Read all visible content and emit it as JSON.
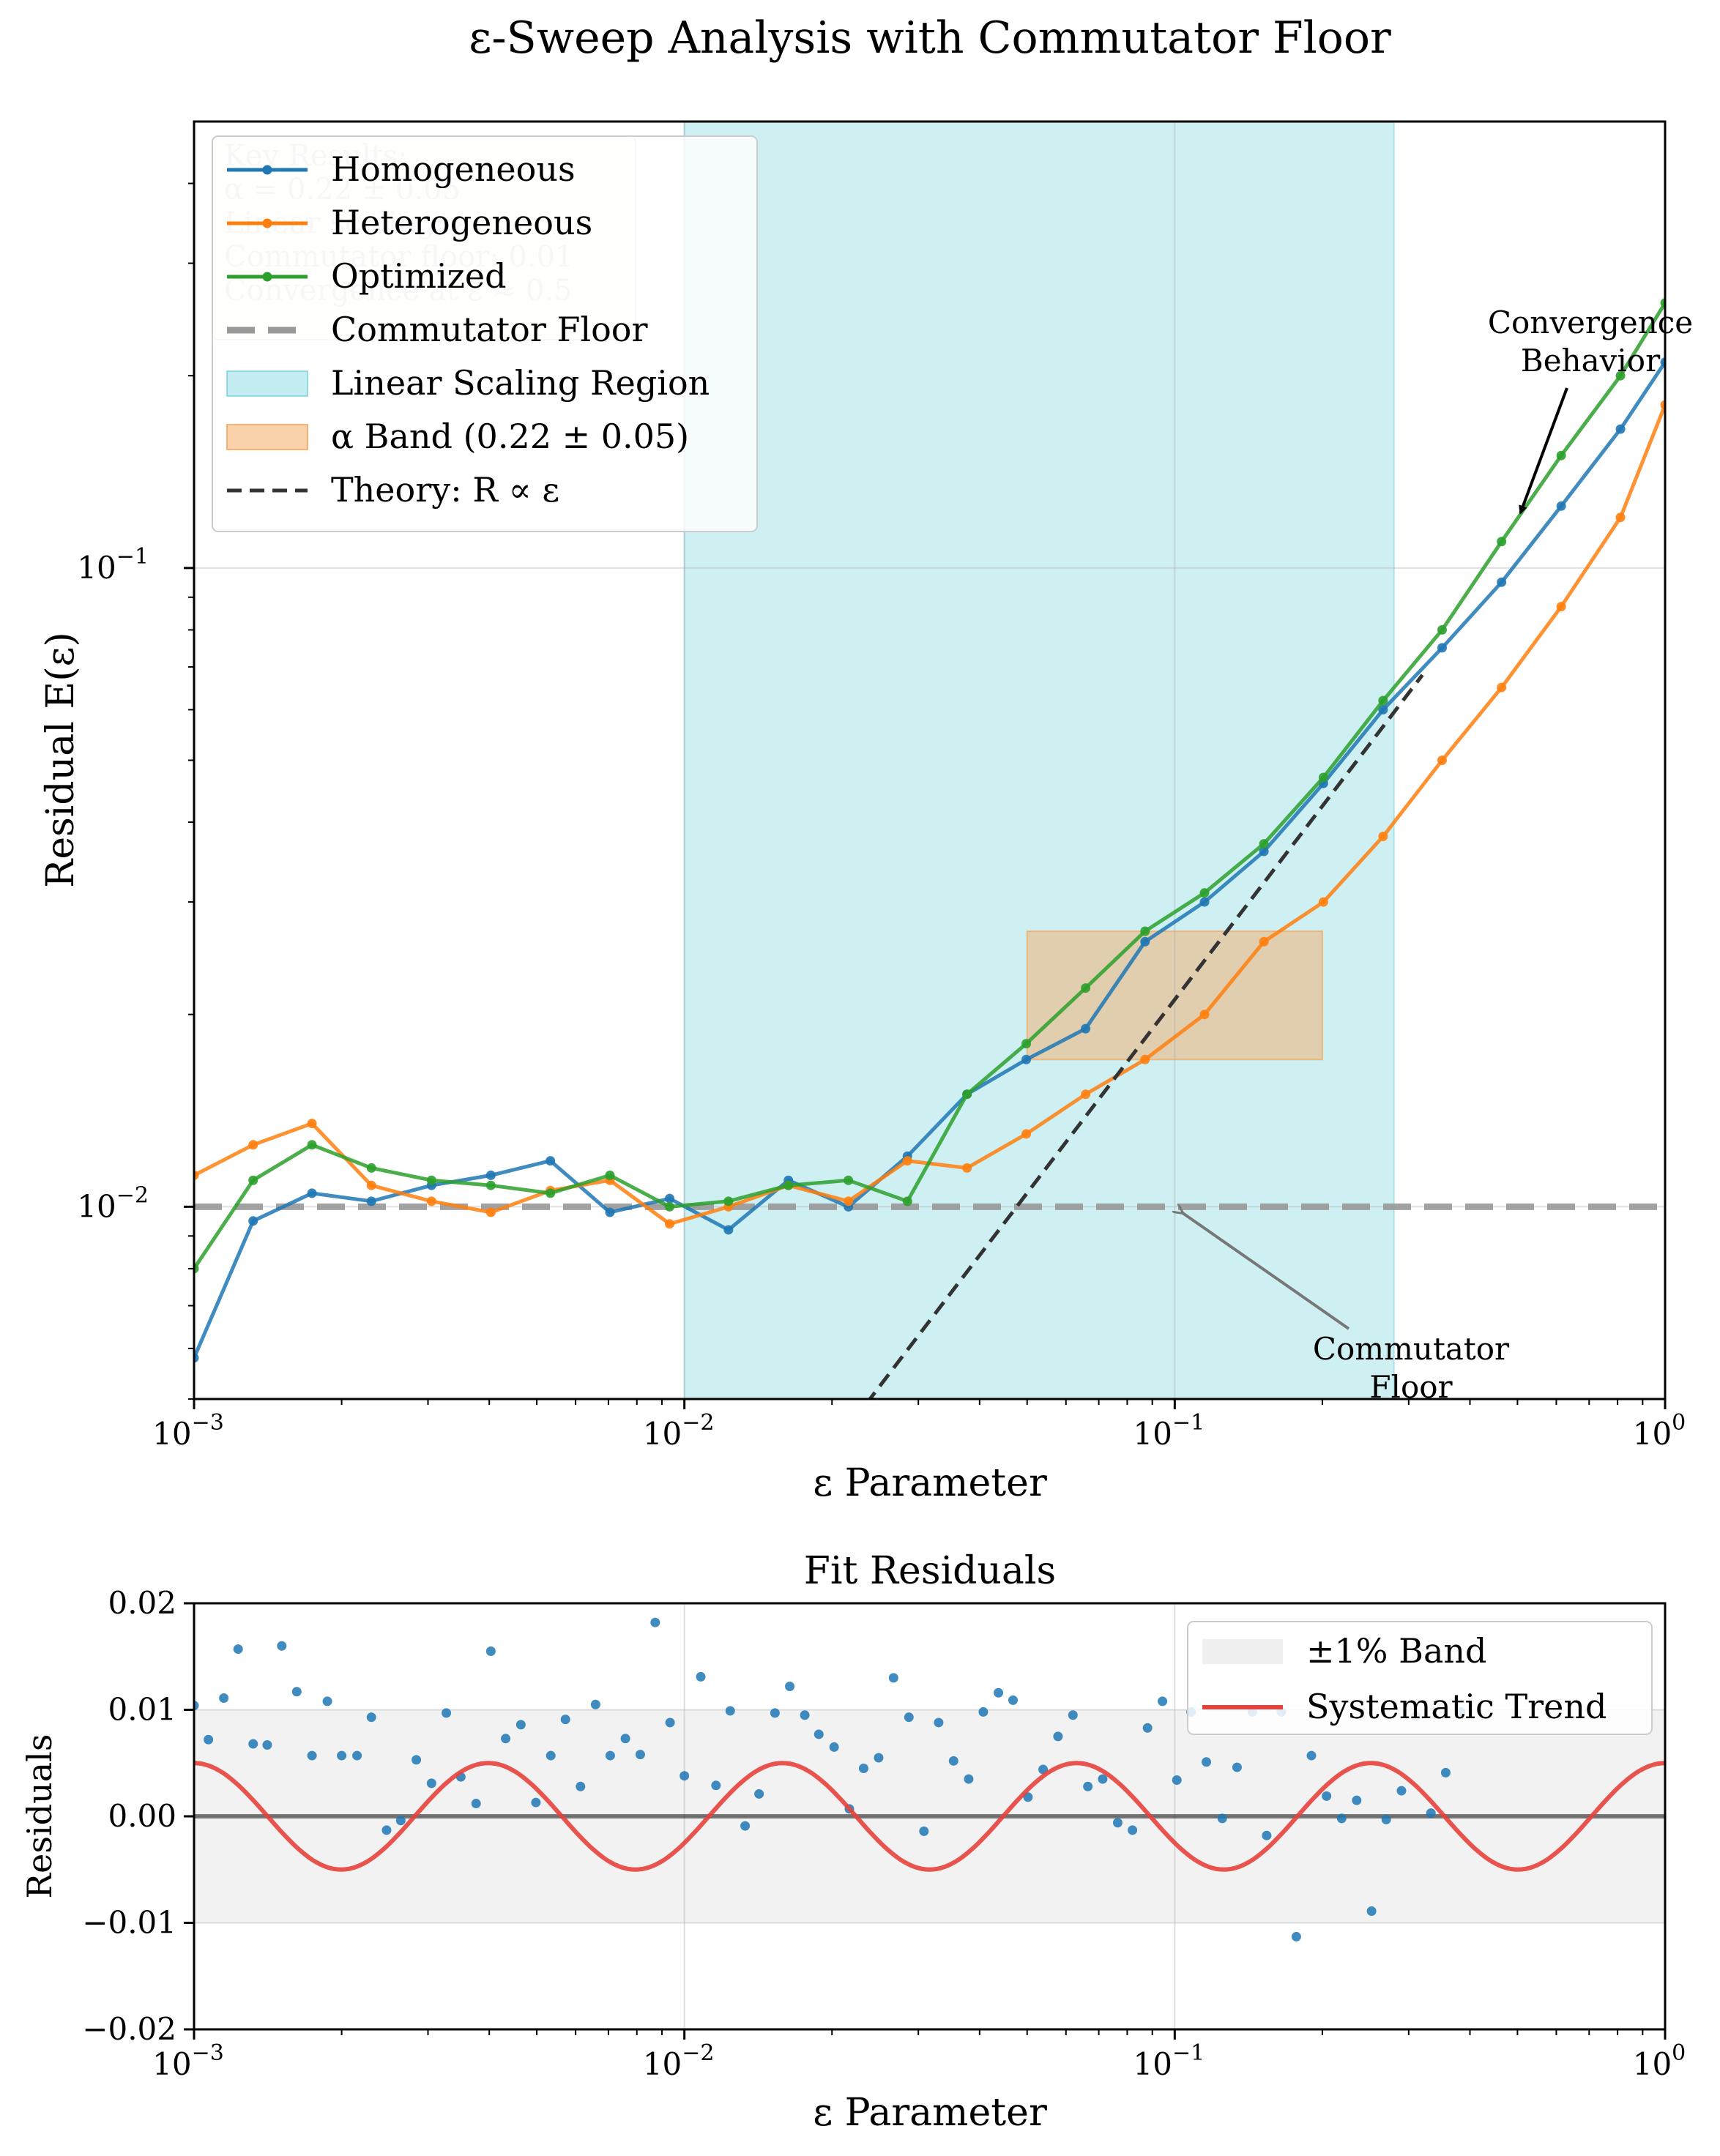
{
  "title": "ε-Sweep Analysis with Commutator Floor",
  "chart_data": [
    {
      "type": "line",
      "xscale": "log",
      "yscale": "log",
      "xlim": [
        0.001,
        1
      ],
      "ylim": [
        0.005,
        0.5
      ],
      "xlabel": "ε Parameter",
      "ylabel": "Residual E(ε)",
      "x_ticks": [
        {
          "value": 0.001,
          "base": "10",
          "exp": "−3"
        },
        {
          "value": 0.01,
          "base": "10",
          "exp": "−2"
        },
        {
          "value": 0.1,
          "base": "10",
          "exp": "−1"
        },
        {
          "value": 1,
          "base": "10",
          "exp": "0"
        }
      ],
      "y_ticks": [
        {
          "value": 0.01,
          "base": "10",
          "exp": "−2"
        },
        {
          "value": 0.1,
          "base": "10",
          "exp": "−1"
        }
      ],
      "grid": true,
      "legend_position": "top-left",
      "series": [
        {
          "name": "Homogeneous",
          "color": "#1f77b4",
          "x": [
            0.001,
            0.00132,
            0.00174,
            0.0023,
            0.00305,
            0.00403,
            0.00533,
            0.00705,
            0.00933,
            0.0123,
            0.0163,
            0.0216,
            0.0285,
            0.0377,
            0.0498,
            0.0658,
            0.087,
            0.115,
            0.152,
            0.201,
            0.266,
            0.351,
            0.464,
            0.614,
            0.811,
            1.0
          ],
          "y": [
            0.0058,
            0.0095,
            0.0105,
            0.0102,
            0.0108,
            0.0112,
            0.0118,
            0.0098,
            0.0103,
            0.0092,
            0.011,
            0.01,
            0.012,
            0.015,
            0.017,
            0.019,
            0.026,
            0.03,
            0.036,
            0.046,
            0.06,
            0.075,
            0.095,
            0.125,
            0.165,
            0.21
          ]
        },
        {
          "name": "Heterogeneous",
          "color": "#ff7f0e",
          "x": [
            0.001,
            0.00132,
            0.00174,
            0.0023,
            0.00305,
            0.00403,
            0.00533,
            0.00705,
            0.00933,
            0.0123,
            0.0163,
            0.0216,
            0.0285,
            0.0377,
            0.0498,
            0.0658,
            0.087,
            0.115,
            0.152,
            0.201,
            0.266,
            0.351,
            0.464,
            0.614,
            0.811,
            1.0
          ],
          "y": [
            0.0112,
            0.0125,
            0.0135,
            0.0108,
            0.0102,
            0.0098,
            0.0106,
            0.011,
            0.0094,
            0.01,
            0.0108,
            0.0102,
            0.0118,
            0.0115,
            0.013,
            0.015,
            0.017,
            0.02,
            0.026,
            0.03,
            0.038,
            0.05,
            0.065,
            0.087,
            0.12,
            0.18
          ]
        },
        {
          "name": "Optimized",
          "color": "#2ca02c",
          "x": [
            0.001,
            0.00132,
            0.00174,
            0.0023,
            0.00305,
            0.00403,
            0.00533,
            0.00705,
            0.00933,
            0.0123,
            0.0163,
            0.0216,
            0.0285,
            0.0377,
            0.0498,
            0.0658,
            0.087,
            0.115,
            0.152,
            0.201,
            0.266,
            0.351,
            0.464,
            0.614,
            0.811,
            1.0
          ],
          "y": [
            0.008,
            0.011,
            0.0125,
            0.0115,
            0.011,
            0.0108,
            0.0105,
            0.0112,
            0.01,
            0.0102,
            0.0108,
            0.011,
            0.0102,
            0.015,
            0.018,
            0.022,
            0.027,
            0.031,
            0.037,
            0.047,
            0.062,
            0.08,
            0.11,
            0.15,
            0.2,
            0.26
          ]
        }
      ],
      "reference_lines": [
        {
          "name": "Commutator Floor",
          "y": 0.01,
          "color": "#999999",
          "style": "dashed"
        },
        {
          "name": "Theory: R ∝ ε",
          "slope": 1,
          "x": [
            0.022,
            0.32
          ],
          "y": [
            0.0046,
            0.068
          ],
          "color": "#333333",
          "style": "dashed"
        }
      ],
      "shaded_regions": [
        {
          "name": "Linear Scaling Region",
          "x": [
            0.01,
            0.28
          ],
          "color": "#40c4d0"
        },
        {
          "name": "α Band (0.22 ± 0.05)",
          "x": [
            0.05,
            0.2
          ],
          "y": [
            0.017,
            0.027
          ],
          "color": "#f5a55a"
        }
      ],
      "legend": [
        "Homogeneous",
        "Heterogeneous",
        "Optimized",
        "Commutator Floor",
        "Linear Scaling Region",
        "α Band (0.22 ± 0.05)",
        "Theory: R ∝ ε"
      ],
      "annotations": [
        {
          "text": [
            "Convergence",
            "Behavior"
          ],
          "xy": [
            0.5,
            0.12
          ]
        },
        {
          "text": [
            "Commutator",
            "Floor"
          ],
          "xy": [
            0.1,
            0.01
          ]
        }
      ],
      "obscured_textbox": [
        "Key Results:",
        "α = 0.22 ± 0.05",
        "Linear scaling: ε",
        "Commutator floor: 0.01",
        "Convergence at ε ≈ 0.5"
      ]
    },
    {
      "type": "scatter",
      "title": "Fit Residuals",
      "xscale": "log",
      "xlim": [
        0.001,
        1
      ],
      "ylim": [
        -0.02,
        0.02
      ],
      "xlabel": "ε Parameter",
      "ylabel": "Residuals",
      "y_ticks": [
        "0.02",
        "0.01",
        "0.00",
        "−0.01",
        "−0.02"
      ],
      "y_tick_values": [
        0.02,
        0.01,
        0,
        -0.01,
        -0.02
      ],
      "band": {
        "name": "±1% Band",
        "y": [
          -0.01,
          0.01
        ],
        "color": "#cccccc"
      },
      "trend": {
        "name": "Systematic Trend",
        "amplitude": 0.005,
        "cycles": 5,
        "color": "#e8413c"
      },
      "points_color": "#1f77b4",
      "points": {
        "x": [
          0.001,
          0.00107,
          0.00115,
          0.00123,
          0.00132,
          0.00141,
          0.00151,
          0.00162,
          0.00174,
          0.00187,
          0.002,
          0.00215,
          0.0023,
          0.00247,
          0.00264,
          0.00284,
          0.00305,
          0.00327,
          0.0035,
          0.00376,
          0.00403,
          0.00432,
          0.00464,
          0.00498,
          0.00534,
          0.00572,
          0.00614,
          0.00659,
          0.00706,
          0.00758,
          0.00813,
          0.00872,
          0.00935,
          0.01,
          0.0108,
          0.0116,
          0.0124,
          0.0133,
          0.0142,
          0.0153,
          0.0164,
          0.0176,
          0.0188,
          0.0202,
          0.0217,
          0.0232,
          0.0249,
          0.0267,
          0.0287,
          0.0308,
          0.033,
          0.0354,
          0.038,
          0.0407,
          0.0437,
          0.0468,
          0.0502,
          0.0539,
          0.0578,
          0.062,
          0.0665,
          0.0713,
          0.0765,
          0.082,
          0.088,
          0.0944,
          0.101,
          0.108,
          0.116,
          0.125,
          0.134,
          0.144,
          0.154,
          0.165,
          0.177,
          0.19,
          0.204,
          0.219,
          0.235,
          0.252,
          0.27,
          0.29,
          0.31,
          0.333,
          0.357,
          0.383
        ],
        "y": [
          0.0104,
          0.0072,
          0.0111,
          0.0157,
          0.0068,
          0.0067,
          0.016,
          0.0117,
          0.0057,
          0.0108,
          0.0057,
          0.0057,
          0.0093,
          -0.0013,
          -0.0004,
          0.0053,
          0.0031,
          0.0097,
          0.0037,
          0.0012,
          0.0155,
          0.0073,
          0.0086,
          0.0013,
          0.0057,
          0.0091,
          0.0028,
          0.0105,
          0.0057,
          0.0073,
          0.0058,
          0.0182,
          0.0088,
          0.0038,
          0.0131,
          0.0029,
          0.0099,
          -0.0009,
          0.0021,
          0.0097,
          0.0122,
          0.0095,
          0.0077,
          0.0065,
          0.0007,
          0.0045,
          0.0055,
          0.013,
          0.0093,
          -0.0014,
          0.0088,
          0.0052,
          0.0035,
          0.0098,
          0.0116,
          0.0109,
          0.0018,
          0.0044,
          0.0075,
          0.0095,
          0.0028,
          0.0035,
          -0.0006,
          -0.0013,
          0.0083,
          0.0108,
          0.0034,
          0.0098,
          0.0051,
          -0.0002,
          0.0046,
          0.0098,
          -0.0018,
          0.0098,
          -0.0113,
          0.0057,
          0.0019,
          -0.0002,
          0.0015,
          -0.0089,
          -0.0003,
          0.0024,
          0.0094,
          0.0003,
          0.0041,
          0.0098
        ]
      }
    }
  ]
}
